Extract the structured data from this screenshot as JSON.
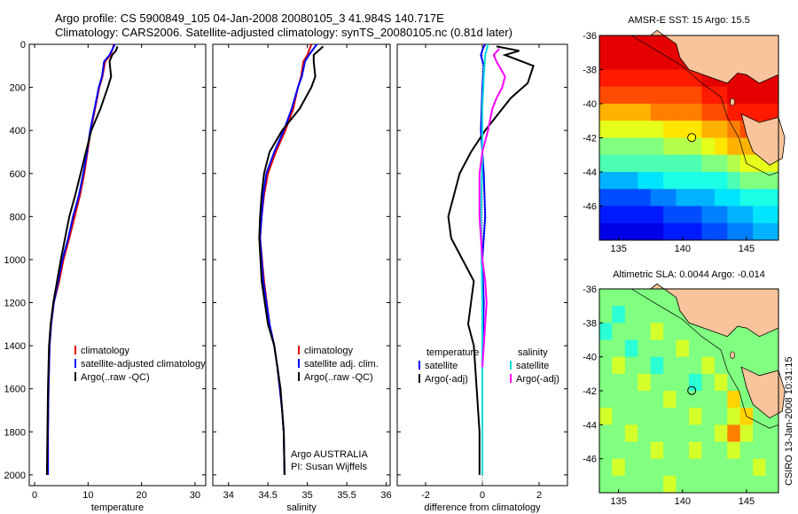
{
  "header": {
    "line1": "Argo profile: CS 5900849_105 04-Jan-2008 20080105_3 41.984S 140.717E",
    "line2": "Climatology: CARS2006. Satellite-adjusted climatology: synTS_20080105.nc (0.81d later)"
  },
  "colors": {
    "climatology": "#e00000",
    "satellite": "#0000ff",
    "argo": "#000000",
    "sal_satellite": "#00dddd",
    "sal_argo": "#ff00ff",
    "land": "#f9c49b"
  },
  "chart_data": [
    {
      "type": "line",
      "id": "temperature",
      "xlabel": "temperature",
      "ylabel": "",
      "xlim": [
        -1,
        32
      ],
      "ylim": [
        2050,
        0
      ],
      "y_reversed": true,
      "xticks": [
        0,
        10,
        20,
        30
      ],
      "yticks": [
        0,
        200,
        400,
        600,
        800,
        1000,
        1200,
        1400,
        1600,
        1800,
        2000
      ],
      "legend": [
        "climatology",
        "satellite-adjusted climatology",
        "Argo(..raw -QC)"
      ],
      "legend_position": "lower-right",
      "series": [
        {
          "name": "climatology",
          "color": "#e00000",
          "x": [
            14.8,
            14.6,
            14.2,
            13.2,
            12.7,
            12.1,
            11.3,
            10.5,
            9.9,
            9.3,
            8.5,
            7.5,
            6.5,
            5.4,
            4.6,
            3.6,
            3.1,
            2.8,
            2.6,
            2.5,
            2.5
          ],
          "y": [
            0,
            20,
            50,
            80,
            150,
            200,
            300,
            400,
            500,
            600,
            700,
            800,
            900,
            1000,
            1100,
            1200,
            1300,
            1400,
            1600,
            1800,
            2000
          ]
        },
        {
          "name": "satellite-adjusted climatology",
          "color": "#0000ff",
          "x": [
            15.0,
            14.6,
            14.0,
            13.0,
            12.6,
            12.0,
            11.2,
            10.4,
            9.8,
            9.1,
            8.3,
            7.2,
            6.3,
            5.2,
            4.4,
            3.6,
            3.1,
            2.8,
            2.6,
            2.5,
            2.5
          ],
          "y": [
            0,
            20,
            50,
            80,
            150,
            200,
            300,
            400,
            500,
            600,
            700,
            800,
            900,
            1000,
            1100,
            1200,
            1300,
            1400,
            1600,
            1800,
            2000
          ]
        },
        {
          "name": "Argo(..raw -QC)",
          "color": "#000000",
          "x": [
            15.5,
            15.2,
            14.5,
            14.0,
            14.3,
            13.7,
            12.3,
            10.6,
            9.6,
            8.6,
            7.6,
            6.5,
            5.7,
            4.9,
            4.2,
            3.5,
            3.0,
            2.7,
            2.5,
            2.4,
            2.3
          ],
          "y": [
            10,
            30,
            50,
            80,
            150,
            200,
            300,
            400,
            500,
            600,
            700,
            800,
            900,
            1000,
            1100,
            1200,
            1300,
            1400,
            1600,
            1800,
            2000
          ]
        }
      ]
    },
    {
      "type": "line",
      "id": "salinity",
      "xlabel": "salinity",
      "ylabel": "",
      "xlim": [
        33.8,
        36.05
      ],
      "ylim": [
        2050,
        0
      ],
      "y_reversed": true,
      "xticks": [
        34,
        34.5,
        35,
        35.5,
        36
      ],
      "legend": [
        "climatology",
        "satellite adj. clim.",
        "Argo(..raw -QC)"
      ],
      "legend_position": "lower-right",
      "annotations": [
        "Argo AUSTRALIA",
        "PI: Susan Wijffels"
      ],
      "series": [
        {
          "name": "climatology",
          "color": "#e00000",
          "x": [
            35.05,
            35.0,
            34.95,
            34.92,
            34.88,
            34.82,
            34.72,
            34.6,
            34.5,
            34.45,
            34.42,
            34.4,
            34.45,
            34.52,
            34.58,
            34.62,
            34.65,
            34.68,
            34.7,
            34.71
          ],
          "y": [
            0,
            50,
            80,
            150,
            200,
            300,
            400,
            500,
            600,
            700,
            800,
            900,
            1100,
            1300,
            1400,
            1500,
            1600,
            1700,
            1800,
            2000
          ]
        },
        {
          "name": "satellite adj. clim.",
          "color": "#0000ff",
          "x": [
            35.12,
            35.02,
            34.97,
            34.93,
            34.88,
            34.8,
            34.7,
            34.58,
            34.48,
            34.44,
            34.42,
            34.4,
            34.44,
            34.52,
            34.58,
            34.62,
            34.65,
            34.68,
            34.7,
            34.71
          ],
          "y": [
            0,
            50,
            80,
            150,
            200,
            300,
            400,
            500,
            600,
            700,
            800,
            900,
            1100,
            1300,
            1400,
            1500,
            1600,
            1700,
            1800,
            2000
          ]
        },
        {
          "name": "Argo(..raw -QC)",
          "color": "#000000",
          "x": [
            35.2,
            35.08,
            35.08,
            35.1,
            35.05,
            34.9,
            34.68,
            34.52,
            34.45,
            34.42,
            34.4,
            34.39,
            34.42,
            34.5,
            34.58,
            34.62,
            34.66,
            34.68,
            34.7,
            34.71
          ],
          "y": [
            10,
            50,
            80,
            150,
            200,
            300,
            400,
            500,
            600,
            700,
            800,
            900,
            1100,
            1300,
            1400,
            1500,
            1600,
            1700,
            1800,
            2000
          ]
        }
      ]
    },
    {
      "type": "line",
      "id": "difference",
      "xlabel": "difference from climatology",
      "ylabel": "",
      "xlim": [
        -3,
        3
      ],
      "ylim": [
        2050,
        0
      ],
      "y_reversed": true,
      "xticks": [
        -2,
        0,
        2
      ],
      "legend": [
        "temperature",
        "satellite",
        "Argo(-adj)",
        "salinity",
        "satellite",
        "Argo(-adj)"
      ],
      "legend_position": "lower",
      "series": [
        {
          "name": "satellite",
          "color": "#0000ff",
          "x": [
            0.1,
            0.02,
            -0.05,
            0.05,
            0.0,
            -0.05,
            0.05,
            0.1,
            0.0,
            0.05,
            0.0,
            0.0
          ],
          "y": [
            0,
            20,
            50,
            100,
            200,
            400,
            600,
            800,
            1000,
            1200,
            1500,
            2000
          ]
        },
        {
          "name": "Argo(-adj)",
          "color": "#000000",
          "x": [
            0.5,
            1.3,
            0.8,
            1.8,
            1.6,
            1.0,
            0.1,
            -0.4,
            -0.8,
            -1.0,
            -1.2,
            -1.1,
            -0.7,
            -0.3,
            -0.4,
            -0.5,
            -0.4,
            -0.3,
            -0.2,
            -0.1,
            -0.1
          ],
          "y": [
            10,
            30,
            50,
            100,
            180,
            250,
            400,
            500,
            600,
            700,
            800,
            900,
            1000,
            1100,
            1200,
            1300,
            1350,
            1400,
            1600,
            1800,
            2000
          ]
        },
        {
          "name": "satellite",
          "color": "#00dddd",
          "x": [
            0.2,
            0.1,
            0.05,
            0.0,
            0.0,
            -0.05,
            0.0,
            0.0,
            0.0
          ],
          "y": [
            0,
            50,
            150,
            300,
            500,
            800,
            1200,
            1600,
            2000
          ]
        },
        {
          "name": "Argo(-adj)",
          "color": "#ff00ff",
          "x": [
            0.6,
            0.4,
            0.5,
            0.8,
            0.7,
            0.5,
            0.35,
            0.2,
            0.0,
            -0.1,
            -0.1,
            -0.05,
            0.0,
            0.1,
            0.15,
            0.1,
            0.05,
            0.0
          ],
          "y": [
            20,
            50,
            80,
            150,
            200,
            250,
            300,
            400,
            500,
            600,
            800,
            900,
            1000,
            1100,
            1200,
            1300,
            1400,
            1500
          ]
        }
      ]
    },
    {
      "type": "heatmap",
      "id": "sst_map",
      "title": "AMSR-E SST: 15 Argo: 15.5",
      "xlim": [
        133.5,
        147.5
      ],
      "ylim": [
        -48,
        -36
      ],
      "xticks": [
        135,
        140,
        145
      ],
      "yticks": [
        -36,
        -38,
        -40,
        -42,
        -44,
        -46
      ],
      "marker": {
        "lon": 140.717,
        "lat": -41.984
      },
      "colorscale": "jet",
      "values": [
        [
          16,
          16,
          16,
          16,
          16,
          16,
          16,
          16,
          16,
          16,
          16,
          16,
          16,
          16
        ],
        [
          16,
          16,
          16,
          16,
          16,
          16,
          16,
          16,
          16,
          16,
          16,
          16,
          16,
          16
        ],
        [
          15.5,
          15.5,
          15.5,
          15.5,
          15.5,
          15.5,
          15.5,
          15.5,
          16,
          16,
          16,
          16,
          16,
          16
        ],
        [
          15,
          15,
          15,
          15,
          15,
          15,
          15,
          15,
          15.5,
          15.5,
          16,
          16,
          16,
          16
        ],
        [
          14,
          14,
          14,
          14,
          14.5,
          14.5,
          14.5,
          14.5,
          15,
          15,
          15.5,
          15.5,
          15.5,
          15.5
        ],
        [
          13,
          13,
          13,
          13,
          13,
          13.5,
          13.5,
          13.5,
          14,
          14,
          14.5,
          15,
          15,
          15
        ],
        [
          12,
          12,
          12,
          12,
          12,
          12.5,
          12.5,
          12.5,
          13,
          13.5,
          14,
          14,
          14,
          14
        ],
        [
          11.5,
          11.5,
          11.5,
          11.5,
          11.5,
          11.5,
          11.5,
          11.5,
          12,
          12,
          12.5,
          13,
          13,
          13
        ],
        [
          10,
          10,
          10,
          10.5,
          10.5,
          11,
          11,
          11,
          11,
          11,
          11.5,
          12,
          12,
          12
        ],
        [
          9,
          9,
          9,
          9,
          9.5,
          9.5,
          10,
          10,
          10,
          10.5,
          10.5,
          11,
          11,
          11
        ],
        [
          8.5,
          8.5,
          8.5,
          8.5,
          8.5,
          9,
          9,
          9,
          9.5,
          9.5,
          10,
          10,
          10.5,
          10.5
        ],
        [
          8,
          8,
          8,
          8,
          8,
          8.5,
          8.5,
          8.5,
          9,
          9,
          9.5,
          9.5,
          10,
          10
        ]
      ]
    },
    {
      "type": "heatmap",
      "id": "sla_map",
      "title": "Altimetric SLA: 0.0044 Argo: -0.014",
      "xlim": [
        133.5,
        147.5
      ],
      "ylim": [
        -48,
        -36
      ],
      "xticks": [
        135,
        140,
        145
      ],
      "yticks": [
        -36,
        -38,
        -40,
        -42,
        -44,
        -46
      ],
      "marker": {
        "lon": 140.717,
        "lat": -41.984
      },
      "colorscale": "jet",
      "values": [
        [
          0,
          0,
          0,
          0,
          0,
          0,
          0,
          0,
          0,
          0,
          0,
          0,
          0,
          0
        ],
        [
          0,
          -0.02,
          0,
          0,
          0,
          0,
          0,
          0,
          0,
          0,
          0,
          0,
          0,
          0
        ],
        [
          -0.02,
          0,
          0,
          0,
          0.02,
          0,
          0,
          0,
          0,
          0,
          0,
          0,
          0,
          0
        ],
        [
          0,
          0,
          -0.02,
          0,
          0,
          0,
          0.02,
          0,
          0,
          0,
          0,
          0,
          0,
          0
        ],
        [
          0,
          0.02,
          0,
          0,
          -0.02,
          0,
          0,
          0,
          0.02,
          0,
          0,
          0,
          0,
          0
        ],
        [
          0,
          0,
          0,
          0.02,
          0,
          0,
          0,
          -0.02,
          0,
          0.02,
          0,
          0,
          0,
          0
        ],
        [
          0,
          0,
          0,
          0,
          0,
          0.02,
          0,
          0,
          0,
          0,
          0.04,
          0,
          0,
          0
        ],
        [
          0.02,
          0,
          0,
          0,
          0,
          0,
          0,
          0.02,
          0,
          0,
          0.02,
          0.04,
          0,
          0
        ],
        [
          0,
          0,
          0.02,
          0,
          0,
          0,
          0,
          0,
          0,
          0.02,
          0.06,
          0.02,
          0,
          0
        ],
        [
          0,
          0,
          0,
          0,
          0.02,
          0,
          0,
          0.02,
          0,
          0,
          0.02,
          0,
          0,
          0
        ],
        [
          0,
          0.02,
          0,
          0,
          0,
          0,
          0,
          0,
          0,
          0,
          0,
          0,
          0.02,
          0
        ],
        [
          0,
          0,
          0,
          0,
          0,
          0.02,
          0,
          0,
          0,
          0,
          0,
          0,
          0,
          0
        ]
      ]
    }
  ],
  "side_stamp": "CSIRO 13-Jan-2008 10:31:15"
}
